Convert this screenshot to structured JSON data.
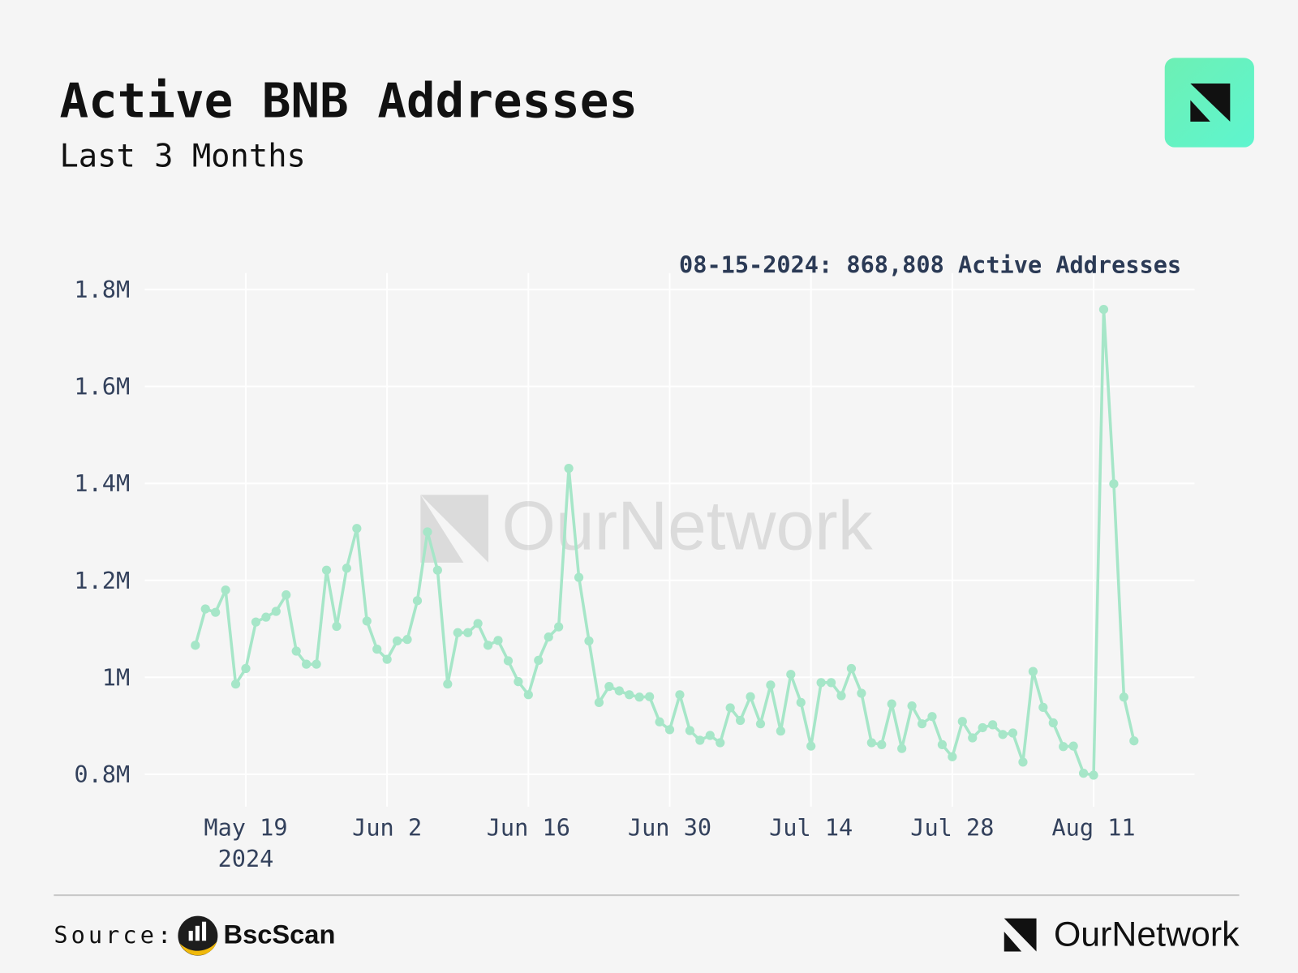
{
  "chart_data": {
    "type": "line",
    "title": "Active BNB Addresses",
    "subtitle": "Last 3 Months",
    "annotation": "08-15-2024: 868,808 Active Addresses",
    "watermark": "OurNetwork",
    "source_label": "Source:",
    "source_name": "BscScan",
    "brand": "OurNetwork",
    "color": "#a6e6c8",
    "grid": true,
    "x": [
      "2024-05-14",
      "2024-05-15",
      "2024-05-16",
      "2024-05-17",
      "2024-05-18",
      "2024-05-19",
      "2024-05-20",
      "2024-05-21",
      "2024-05-22",
      "2024-05-23",
      "2024-05-24",
      "2024-05-25",
      "2024-05-26",
      "2024-05-27",
      "2024-05-28",
      "2024-05-29",
      "2024-05-30",
      "2024-05-31",
      "2024-06-01",
      "2024-06-02",
      "2024-06-03",
      "2024-06-04",
      "2024-06-05",
      "2024-06-06",
      "2024-06-07",
      "2024-06-08",
      "2024-06-09",
      "2024-06-10",
      "2024-06-11",
      "2024-06-12",
      "2024-06-13",
      "2024-06-14",
      "2024-06-15",
      "2024-06-16",
      "2024-06-17",
      "2024-06-18",
      "2024-06-19",
      "2024-06-20",
      "2024-06-21",
      "2024-06-22",
      "2024-06-23",
      "2024-06-24",
      "2024-06-25",
      "2024-06-26",
      "2024-06-27",
      "2024-06-28",
      "2024-06-29",
      "2024-06-30",
      "2024-07-01",
      "2024-07-02",
      "2024-07-03",
      "2024-07-04",
      "2024-07-05",
      "2024-07-06",
      "2024-07-07",
      "2024-07-08",
      "2024-07-09",
      "2024-07-10",
      "2024-07-11",
      "2024-07-12",
      "2024-07-13",
      "2024-07-14",
      "2024-07-15",
      "2024-07-16",
      "2024-07-17",
      "2024-07-18",
      "2024-07-19",
      "2024-07-20",
      "2024-07-21",
      "2024-07-22",
      "2024-07-23",
      "2024-07-24",
      "2024-07-25",
      "2024-07-26",
      "2024-07-27",
      "2024-07-28",
      "2024-07-29",
      "2024-07-30",
      "2024-07-31",
      "2024-08-01",
      "2024-08-02",
      "2024-08-03",
      "2024-08-04",
      "2024-08-05",
      "2024-08-06",
      "2024-08-07",
      "2024-08-08",
      "2024-08-09",
      "2024-08-10",
      "2024-08-11",
      "2024-08-12",
      "2024-08-13",
      "2024-08-14",
      "2024-08-15"
    ],
    "values": [
      1066000,
      1141000,
      1134000,
      1180000,
      986000,
      1018000,
      1114000,
      1124000,
      1136000,
      1170000,
      1054000,
      1027000,
      1027000,
      1221000,
      1105000,
      1225000,
      1307000,
      1116000,
      1058000,
      1037000,
      1075000,
      1078000,
      1158000,
      1300000,
      1221000,
      986000,
      1092000,
      1092000,
      1111000,
      1066000,
      1076000,
      1034000,
      991000,
      964000,
      1035000,
      1083000,
      1104000,
      1431000,
      1206000,
      1075000,
      948000,
      981000,
      972000,
      964000,
      959000,
      960000,
      908000,
      892000,
      964000,
      890000,
      870000,
      880000,
      865000,
      937000,
      911000,
      960000,
      904000,
      984000,
      889000,
      1006000,
      948000,
      858000,
      989000,
      989000,
      962000,
      1018000,
      967000,
      865000,
      861000,
      945000,
      853000,
      941000,
      904000,
      919000,
      861000,
      836000,
      909000,
      875000,
      896000,
      902000,
      882000,
      885000,
      825000,
      1012000,
      938000,
      906000,
      857000,
      858000,
      802000,
      798000,
      1759000,
      1399000,
      959000,
      868808
    ],
    "xlim": [
      "2024-05-09",
      "2024-08-21"
    ],
    "xticks": [
      {
        "value": "2024-05-19",
        "label": "May 19"
      },
      {
        "value": "2024-06-02",
        "label": "Jun 2"
      },
      {
        "value": "2024-06-16",
        "label": "Jun 16"
      },
      {
        "value": "2024-06-30",
        "label": "Jun 30"
      },
      {
        "value": "2024-07-14",
        "label": "Jul 14"
      },
      {
        "value": "2024-07-28",
        "label": "Jul 28"
      },
      {
        "value": "2024-08-11",
        "label": "Aug 11"
      }
    ],
    "x_year_label": "2024",
    "ylim": [
      733000,
      1834000
    ],
    "yticks": [
      {
        "value": 800000,
        "label": "0.8M"
      },
      {
        "value": 1000000,
        "label": "1M"
      },
      {
        "value": 1200000,
        "label": "1.2M"
      },
      {
        "value": 1400000,
        "label": "1.4M"
      },
      {
        "value": 1600000,
        "label": "1.6M"
      },
      {
        "value": 1800000,
        "label": "1.8M"
      }
    ]
  }
}
